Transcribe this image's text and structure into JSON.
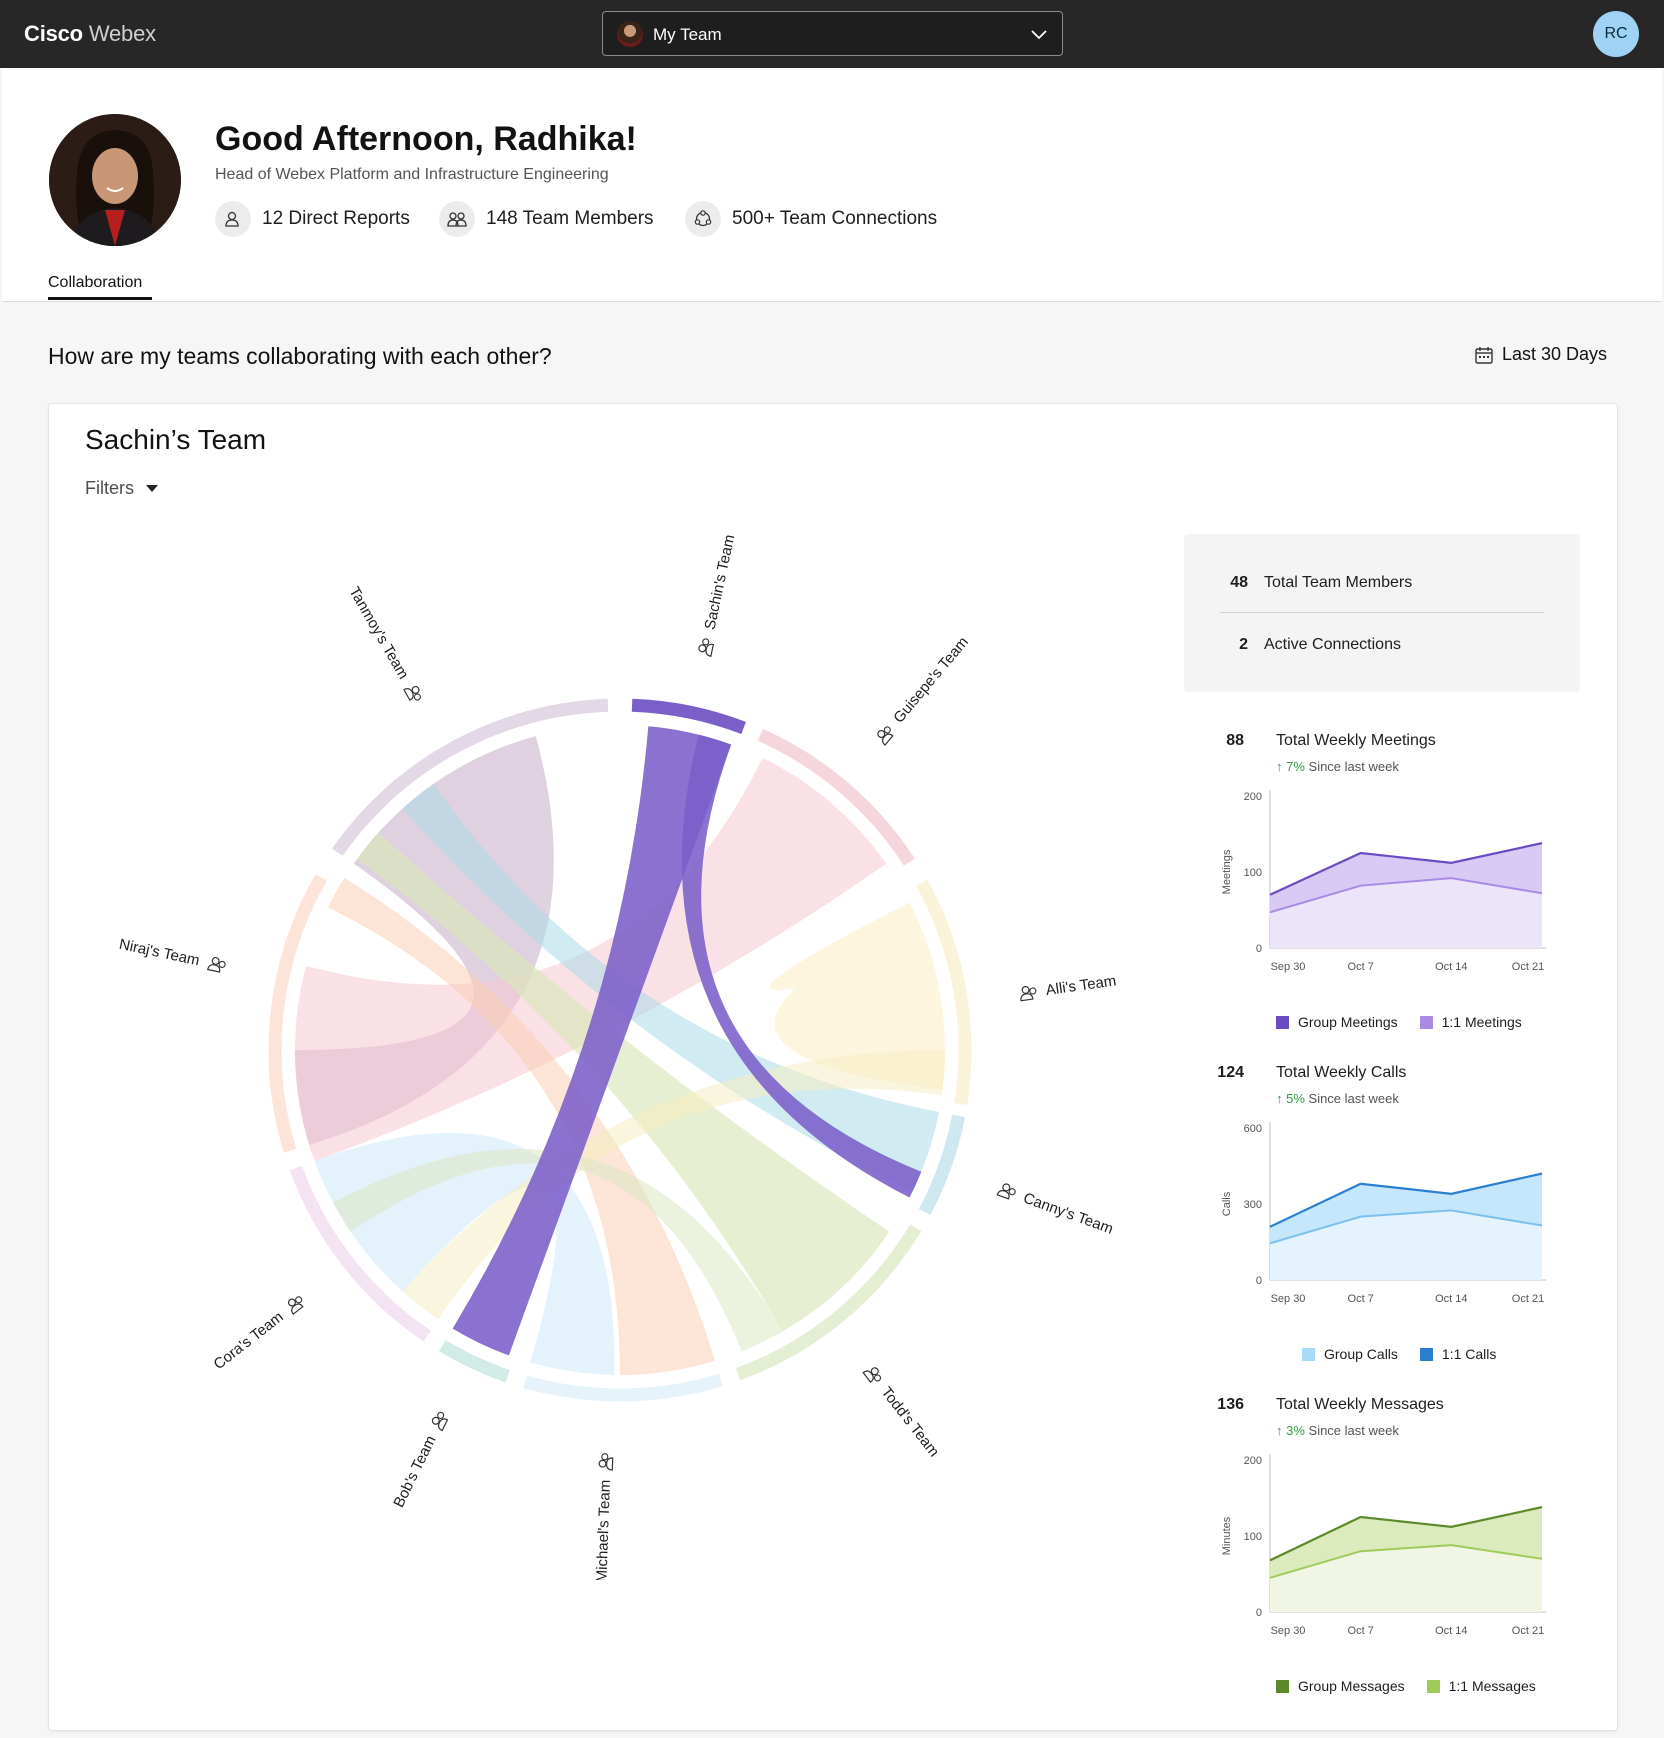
{
  "app": {
    "brand_bold": "Cisco",
    "brand_light": "Webex"
  },
  "team_select": {
    "value": "My Team"
  },
  "user": {
    "initials": "RC"
  },
  "header": {
    "greeting": "Good Afternoon, Radhika!",
    "role": "Head of Webex Platform and Infrastructure Engineering",
    "stats": [
      "12 Direct Reports",
      "148 Team Members",
      "500+ Team Connections"
    ]
  },
  "tabs": [
    "Collaboration"
  ],
  "section": {
    "question": "How are my teams collaborating with each other?",
    "range": "Last 30 Days"
  },
  "card": {
    "title": "Sachin’s Team",
    "filters": "Filters"
  },
  "summary": {
    "members_n": "48",
    "members_label": "Total Team Members",
    "connections_n": "2",
    "connections_label": "Active Connections"
  },
  "chord_teams": [
    "Sachin's Team",
    "Guisepe's Team",
    "Alli's Team",
    "Canny's Team",
    "Todd's Team",
    "Michael's Team",
    "Bob's Team",
    "Cora's Team",
    "Niraj's Team",
    "Tanmoy's Team"
  ],
  "metrics": [
    {
      "n": "88",
      "label": "Total Weekly Meetings",
      "delta": "7%",
      "delta_text": "Since last week",
      "ylabel": "Meetings",
      "ymax": 200,
      "yticks": [
        "200",
        "100",
        "0"
      ],
      "xticks": [
        "Sep 30",
        "Oct 7",
        "Oct 14",
        "Oct 21"
      ],
      "legend": [
        "Group Meetings",
        "1:1 Meetings"
      ],
      "colors": {
        "top": "#6a4bc4",
        "topfill": "#d9c9f5",
        "bottom": "#a98be6",
        "bottomfill": "#ece5fa"
      },
      "series_top": [
        70,
        125,
        112,
        138
      ],
      "series_bottom": [
        47,
        82,
        92,
        72
      ]
    },
    {
      "n": "124",
      "label": "Total Weekly Calls",
      "delta": "5%",
      "delta_text": "Since last week",
      "ylabel": "Calls",
      "ymax": 600,
      "yticks": [
        "600",
        "300",
        "0"
      ],
      "xticks": [
        "Sep 30",
        "Oct 7",
        "Oct 14",
        "Oct 21"
      ],
      "legend": [
        "Group Calls",
        "1:1 Calls"
      ],
      "colors": {
        "top": "#2a7fd1",
        "topfill": "#c6e6fb",
        "bottom": "#7cc0f0",
        "bottomfill": "#e4f3fd"
      },
      "series_top": [
        210,
        380,
        340,
        420
      ],
      "series_bottom": [
        145,
        250,
        275,
        215
      ]
    },
    {
      "n": "136",
      "label": "Total Weekly Messages",
      "delta": "3%",
      "delta_text": "Since last week",
      "ylabel": "Minutes",
      "ymax": 200,
      "yticks": [
        "200",
        "100",
        "0"
      ],
      "xticks": [
        "Sep 30",
        "Oct 7",
        "Oct 14",
        "Oct 21"
      ],
      "legend": [
        "Group Messages",
        "1:1 Messages"
      ],
      "colors": {
        "top": "#5c8a2a",
        "topfill": "#dcebbd",
        "bottom": "#9ecb5a",
        "bottomfill": "#f0f5e4"
      },
      "series_top": [
        68,
        125,
        112,
        138
      ],
      "series_bottom": [
        45,
        80,
        88,
        70
      ]
    }
  ]
}
